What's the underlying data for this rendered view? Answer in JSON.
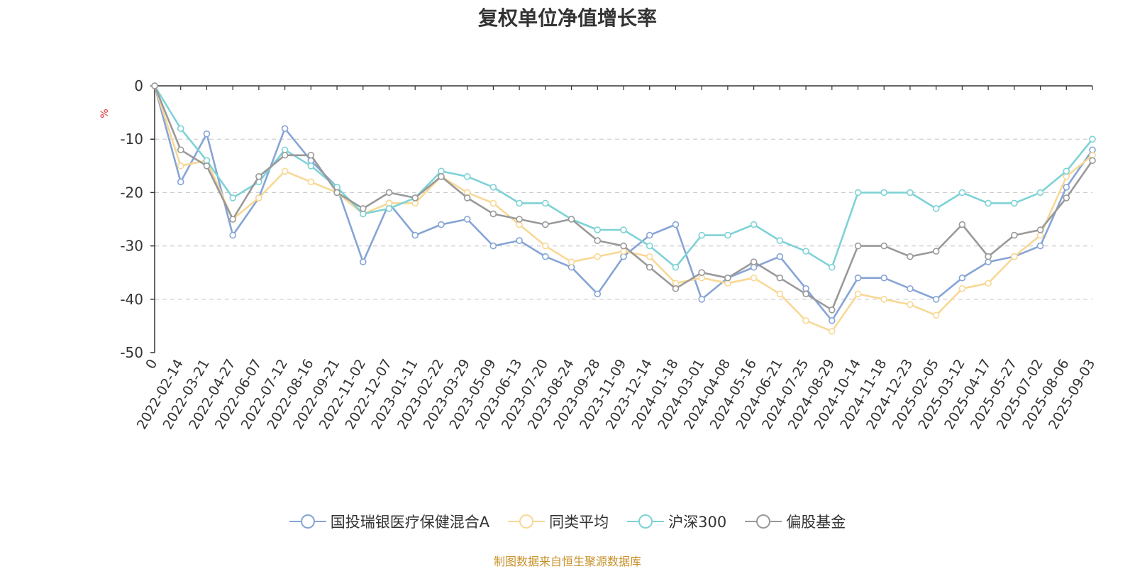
{
  "chart_data": {
    "type": "line",
    "title": "复权单位净值增长率",
    "ylabel": "%",
    "ylim": [
      -50,
      0
    ],
    "yticks": [
      0,
      -10,
      -20,
      -30,
      -40,
      -50
    ],
    "x_tick_labels": [
      "0",
      "2022-02-14",
      "2022-03-21",
      "2022-04-27",
      "2022-06-07",
      "2022-07-12",
      "2022-08-16",
      "2022-09-21",
      "2022-11-02",
      "2022-12-07",
      "2023-01-11",
      "2023-02-22",
      "2023-03-29",
      "2023-05-09",
      "2023-06-13",
      "2023-07-20",
      "2023-08-24",
      "2023-09-28",
      "2023-11-09",
      "2023-12-14",
      "2024-01-18",
      "2024-03-01",
      "2024-04-08",
      "2024-05-16",
      "2024-06-21",
      "2024-07-25",
      "2024-08-29",
      "2024-10-14",
      "2024-11-18",
      "2024-12-23",
      "2025-02-05",
      "2025-03-12",
      "2025-04-17",
      "2025-05-27",
      "2025-07-02",
      "2025-08-06",
      "2025-09-03"
    ],
    "grid": "horizontal-dashed",
    "legend_position": "bottom-center",
    "series": [
      {
        "name": "国投瑞银医疗保健混合A",
        "color": "#86a4d6",
        "values": [
          0,
          -18,
          -9,
          -28,
          -21,
          -8,
          -14,
          -19,
          -33,
          -22,
          -28,
          -26,
          -25,
          -30,
          -29,
          -32,
          -34,
          -39,
          -32,
          -28,
          -26,
          -40,
          -36,
          -34,
          -32,
          -38,
          -44,
          -36,
          -36,
          -38,
          -40,
          -36,
          -33,
          -32,
          -30,
          -19,
          -12
        ]
      },
      {
        "name": "同类平均",
        "color": "#f8d895",
        "values": [
          0,
          -15,
          -14,
          -25,
          -21,
          -16,
          -18,
          -20,
          -24,
          -22,
          -22,
          -17,
          -20,
          -22,
          -26,
          -30,
          -33,
          -32,
          -31,
          -32,
          -37,
          -36,
          -37,
          -36,
          -39,
          -44,
          -46,
          -39,
          -40,
          -41,
          -43,
          -38,
          -37,
          -32,
          -28,
          -17,
          -13
        ]
      },
      {
        "name": "沪深300",
        "color": "#7ed2d6",
        "values": [
          0,
          -8,
          -14,
          -21,
          -18,
          -12,
          -15,
          -19,
          -24,
          -23,
          -21,
          -16,
          -17,
          -19,
          -22,
          -22,
          -25,
          -27,
          -27,
          -30,
          -34,
          -28,
          -28,
          -26,
          -29,
          -31,
          -34,
          -20,
          -20,
          -20,
          -23,
          -20,
          -22,
          -22,
          -20,
          -16,
          -10
        ]
      },
      {
        "name": "偏股基金",
        "color": "#999999",
        "values": [
          0,
          -12,
          -15,
          -25,
          -17,
          -13,
          -13,
          -20,
          -23,
          -20,
          -21,
          -17,
          -21,
          -24,
          -25,
          -26,
          -25,
          -29,
          -30,
          -34,
          -38,
          -35,
          -36,
          -33,
          -36,
          -39,
          -42,
          -30,
          -30,
          -32,
          -31,
          -26,
          -32,
          -28,
          -27,
          -21,
          -14
        ]
      }
    ]
  },
  "legend": {
    "item0": "国投瑞银医疗保健混合A",
    "item1": "同类平均",
    "item2": "沪深300",
    "item3": "偏股基金"
  },
  "source_note": "制图数据来自恒生聚源数据库"
}
